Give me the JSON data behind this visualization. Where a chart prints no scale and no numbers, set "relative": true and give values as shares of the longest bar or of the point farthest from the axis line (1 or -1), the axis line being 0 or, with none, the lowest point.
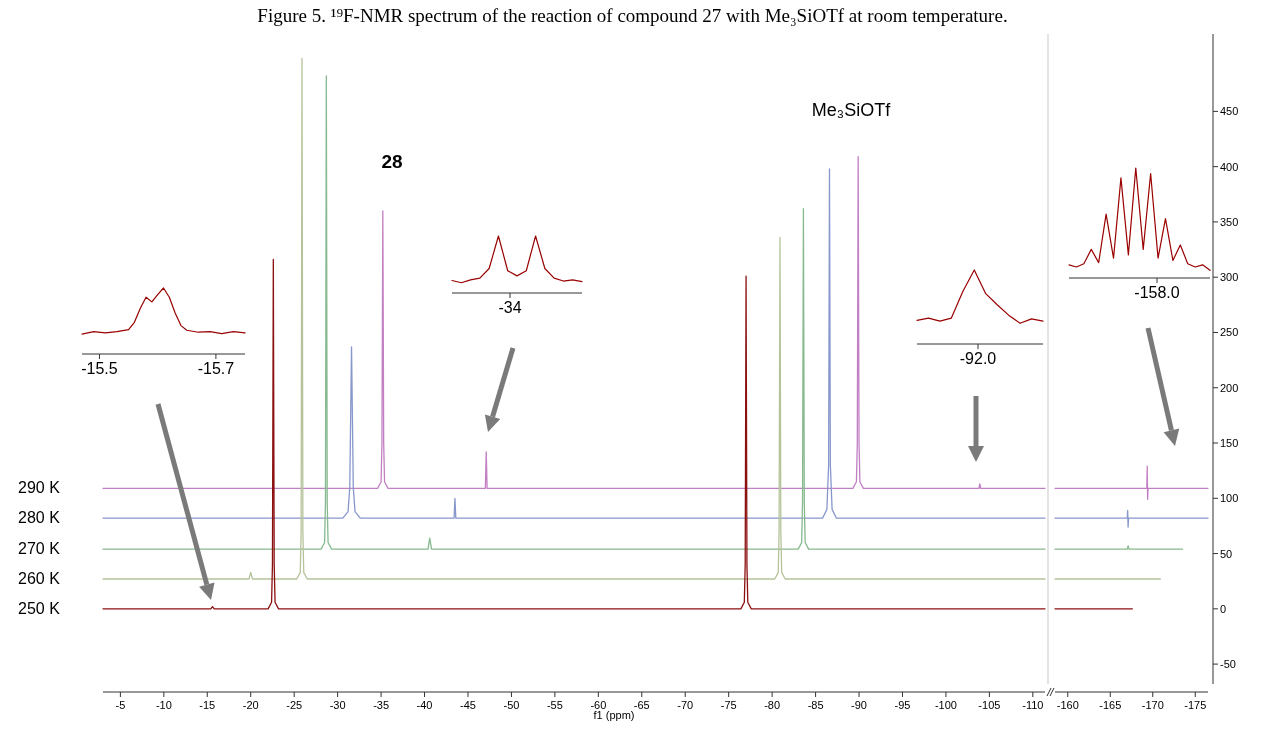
{
  "chart_data": [
    {
      "type": "line",
      "title": "Figure 5. ¹⁹F-NMR spectrum of the reaction of compound 27 with Me₃SiOTf at room temperature.",
      "xlabel": "f1 (ppm)",
      "xlim": [
        -3,
        -111.4
      ],
      "xticks": [
        -5,
        -10,
        -15,
        -20,
        -25,
        -30,
        -35,
        -40,
        -45,
        -50,
        -55,
        -60,
        -65,
        -70,
        -75,
        -80,
        -85,
        -90,
        -95,
        -100,
        -105,
        -110
      ],
      "ylim": [
        -68,
        520
      ],
      "tick_labels": "x",
      "annotations": [
        "28",
        "Me₃SiOTf"
      ],
      "series": [
        {
          "name": "290 K",
          "color": "#c27fc4",
          "x": [
            -3,
            -34.6,
            -35.0,
            -35.1,
            -35.2,
            -35.3,
            -35.4,
            -35.8,
            -47.0,
            -47.1,
            -47.2,
            -89.3,
            -89.7,
            -89.8,
            -89.9,
            -90.0,
            -90.1,
            -90.5,
            -103.8,
            -103.9,
            -104.0,
            -111.4
          ],
          "values": [
            109,
            109,
            115,
            150,
            360,
            150,
            115,
            109,
            109,
            142,
            109,
            109,
            115,
            150,
            409,
            150,
            115,
            109,
            109,
            113,
            109,
            109
          ]
        },
        {
          "name": "280 K",
          "color": "#8797cc",
          "x": [
            -3,
            -30.6,
            -31.2,
            -31.4,
            -31.6,
            -31.8,
            -32.0,
            -32.6,
            -43.4,
            -43.5,
            -43.6,
            -85.8,
            -86.3,
            -86.5,
            -86.6,
            -86.7,
            -86.9,
            -87.4,
            -111.4
          ],
          "values": [
            82,
            82,
            88,
            110,
            237,
            110,
            88,
            82,
            82,
            100,
            82,
            82,
            90,
            130,
            398,
            130,
            90,
            82,
            82
          ]
        },
        {
          "name": "270 K",
          "color": "#86b98e",
          "x": [
            -3,
            -28.1,
            -28.5,
            -28.6,
            -28.7,
            -28.8,
            -28.9,
            -29.3,
            -40.4,
            -40.6,
            -40.8,
            -83.0,
            -83.4,
            -83.5,
            -83.6,
            -83.7,
            -83.8,
            -84.2,
            -111.4
          ],
          "values": [
            54,
            54,
            60,
            97,
            482,
            97,
            60,
            54,
            54,
            64,
            54,
            54,
            60,
            97,
            362,
            97,
            60,
            54,
            54
          ]
        },
        {
          "name": "260 K",
          "color": "#b5c39a",
          "x": [
            -3,
            -19.8,
            -20.0,
            -20.2,
            -25.3,
            -25.7,
            -25.8,
            -25.9,
            -26.0,
            -26.1,
            -26.5,
            -80.3,
            -80.7,
            -80.8,
            -80.9,
            -81.0,
            -81.1,
            -81.5,
            -111.4
          ],
          "values": [
            27,
            27,
            33,
            27,
            27,
            33,
            70,
            498,
            70,
            33,
            27,
            27,
            33,
            70,
            336,
            70,
            33,
            27,
            27
          ]
        },
        {
          "name": "250 K",
          "color": "#8b1010",
          "x": [
            -3,
            -15.4,
            -15.6,
            -15.8,
            -22.0,
            -22.4,
            -22.5,
            -22.6,
            -22.7,
            -22.8,
            -23.2,
            -55,
            -76.4,
            -76.8,
            -76.9,
            -77.0,
            -77.1,
            -77.2,
            -77.6,
            -111.4
          ],
          "values": [
            0,
            0,
            2,
            0,
            0,
            6,
            40,
            316,
            40,
            6,
            0,
            0,
            0,
            6,
            40,
            301,
            40,
            6,
            0,
            0
          ]
        }
      ]
    },
    {
      "type": "line",
      "xlim": [
        -158.5,
        -176.5
      ],
      "xticks": [
        -160,
        -165,
        -170,
        -175
      ],
      "ylim": [
        -68,
        520
      ],
      "yticks": [
        -50,
        0,
        50,
        100,
        150,
        200,
        250,
        300,
        350,
        400,
        450
      ],
      "series": [
        {
          "color": "#c27fc4",
          "x": [
            -158.5,
            -169.3,
            -169.35,
            -169.4,
            -169.45,
            -176.5
          ],
          "values": [
            109,
            109,
            129,
            99,
            109,
            109
          ]
        },
        {
          "color": "#8797cc",
          "x": [
            -158.5,
            -167.0,
            -167.05,
            -167.1,
            -167.15,
            -176.5
          ],
          "values": [
            82,
            82,
            89,
            74,
            82,
            82
          ]
        },
        {
          "color": "#86b98e",
          "x": [
            -158.5,
            -167.0,
            -167.1,
            -167.2,
            -173.5
          ],
          "values": [
            54,
            54,
            57,
            54,
            54
          ]
        },
        {
          "color": "#b5c39a",
          "x": [
            -158.5,
            -170.9
          ],
          "values": [
            27,
            27
          ]
        },
        {
          "color": "#8b1010",
          "x": [
            -158.5,
            -167.6
          ],
          "values": [
            0,
            0
          ]
        }
      ]
    },
    {
      "type": "line",
      "relative": true,
      "xlim": [
        -15.47,
        -15.75
      ],
      "xticks": [
        -15.5,
        -15.7
      ],
      "series": [
        {
          "color": "#990000",
          "x": [
            -15.47,
            -15.49,
            -15.51,
            -15.53,
            -15.55,
            -15.56,
            -15.57,
            -15.58,
            -15.59,
            -15.6,
            -15.61,
            -15.62,
            -15.63,
            -15.64,
            -15.65,
            -15.67,
            -15.69,
            -15.71,
            -15.73,
            -15.75
          ],
          "values": [
            0.3,
            0.34,
            0.32,
            0.34,
            0.37,
            0.48,
            0.69,
            0.86,
            0.79,
            0.9,
            1,
            0.86,
            0.62,
            0.43,
            0.36,
            0.33,
            0.34,
            0.31,
            0.34,
            0.32
          ]
        }
      ]
    },
    {
      "type": "line",
      "relative": true,
      "annotations": [
        "-34"
      ],
      "categories": [
        null,
        null,
        null,
        null,
        null,
        null,
        null,
        null,
        null,
        null,
        null,
        null,
        null,
        null,
        null
      ],
      "series": [
        {
          "color": "#990000",
          "values": [
            0.22,
            0.18,
            0.23,
            0.26,
            0.43,
            1,
            0.39,
            0.3,
            0.39,
            1,
            0.43,
            0.26,
            0.21,
            0.23,
            0.2
          ]
        }
      ]
    },
    {
      "type": "line",
      "relative": true,
      "annotations": [
        "-92.0"
      ],
      "categories": [
        null,
        null,
        null,
        null,
        null,
        null,
        null,
        null,
        null,
        null,
        null,
        null
      ],
      "series": [
        {
          "color": "#990000",
          "values": [
            0.32,
            0.35,
            0.31,
            0.35,
            0.71,
            1,
            0.68,
            0.53,
            0.39,
            0.28,
            0.34,
            0.31
          ]
        }
      ]
    },
    {
      "type": "line",
      "relative": true,
      "annotations": [
        "-158.0"
      ],
      "categories": [
        null,
        null,
        null,
        null,
        null,
        null,
        null,
        null,
        null,
        null,
        null,
        null,
        null,
        null,
        null,
        null,
        null,
        null,
        null,
        null
      ],
      "series": [
        {
          "color": "#990000",
          "values": [
            0.12,
            0.1,
            0.13,
            0.26,
            0.14,
            0.58,
            0.18,
            0.91,
            0.21,
            1,
            0.26,
            0.95,
            0.18,
            0.54,
            0.16,
            0.3,
            0.13,
            0.1,
            0.12,
            0.07
          ]
        }
      ]
    }
  ]
}
